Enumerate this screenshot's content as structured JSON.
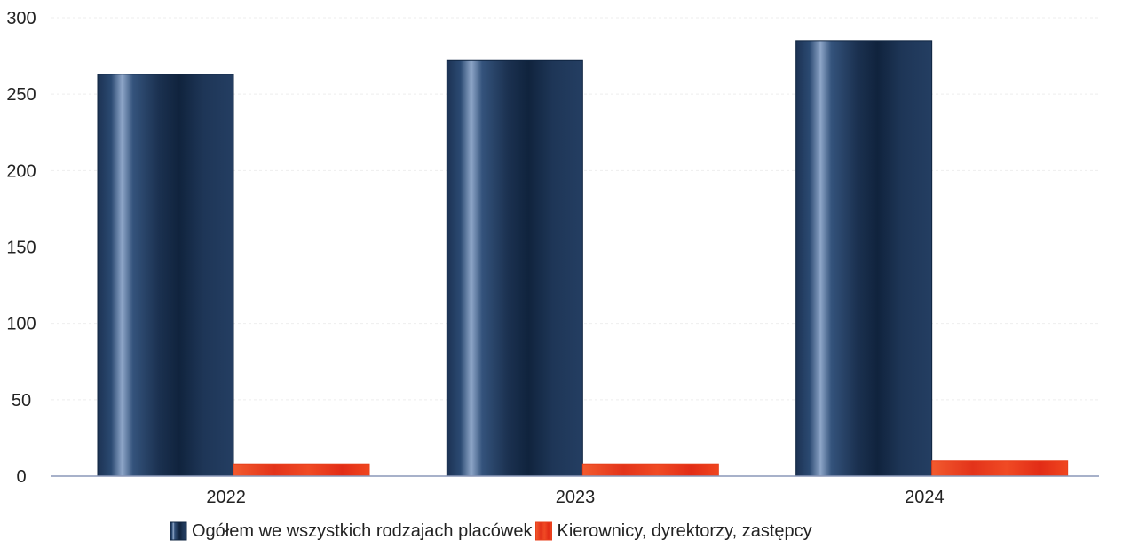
{
  "colors": {
    "series_1": "#1f3a5f",
    "series_1_dark": "#0f2440",
    "series_1_light": "#7f98be",
    "series_2": "#e8401c",
    "series_2_light": "#ff6a45",
    "gridline": "#eeeeee",
    "baseline": "#8a97b8"
  },
  "chart_data": {
    "type": "bar",
    "title": "",
    "xlabel": "",
    "ylabel": "",
    "categories": [
      "2022",
      "2023",
      "2024"
    ],
    "series": [
      {
        "name": "Ogółem we wszystkich rodzajach placówek",
        "values": [
          263,
          272,
          285
        ]
      },
      {
        "name": "Kierownicy, dyrektorzy, zastępcy",
        "values": [
          8,
          8,
          10
        ]
      }
    ],
    "ylim": [
      0,
      300
    ],
    "yticks": [
      "0",
      "50",
      "100",
      "150",
      "200",
      "250",
      "300"
    ],
    "grid": true,
    "legend": "bottom-center"
  }
}
